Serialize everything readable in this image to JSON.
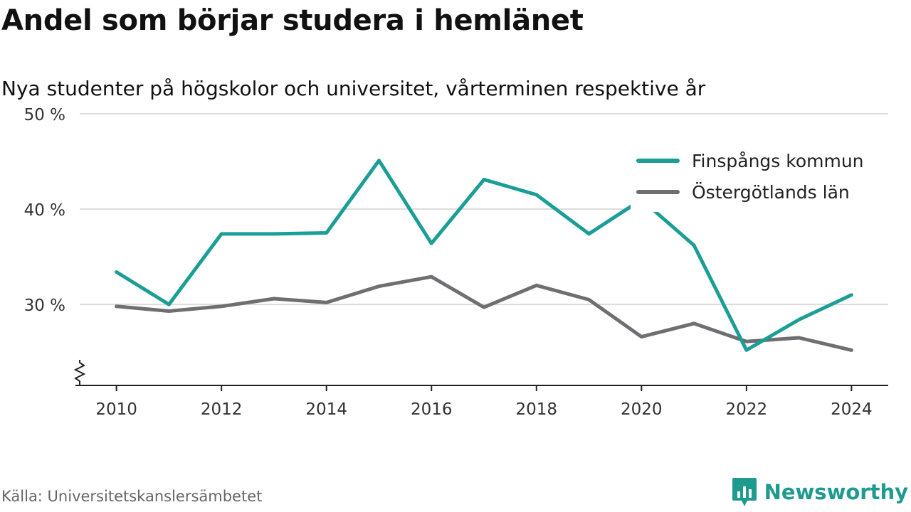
{
  "header": {
    "title": "Andel som börjar studera i hemlänet",
    "subtitle": "Nya studenter på högskolor och universitet, vårterminen respektive år"
  },
  "footer": {
    "source": "Källa: Universitetskanslersämbetet",
    "brand": "Newsworthy"
  },
  "colors": {
    "finspang": "#1a9e95",
    "ostergotland": "#6e6e73",
    "brand": "#1e9a8f"
  },
  "chart_data": {
    "type": "line",
    "x": [
      2010,
      2011,
      2012,
      2013,
      2014,
      2015,
      2016,
      2017,
      2018,
      2019,
      2020,
      2021,
      2022,
      2023,
      2024
    ],
    "series": [
      {
        "name": "Finspångs kommun",
        "color": "#1a9e95",
        "values": [
          33.4,
          30.0,
          37.4,
          37.4,
          37.5,
          45.1,
          36.4,
          43.1,
          41.5,
          37.4,
          41.0,
          36.2,
          25.2,
          28.4,
          31.0
        ]
      },
      {
        "name": "Östergötlands län",
        "color": "#6e6e73",
        "values": [
          29.8,
          29.3,
          29.8,
          30.6,
          30.2,
          31.9,
          32.9,
          29.7,
          32.0,
          30.5,
          26.6,
          28.0,
          26.1,
          26.5,
          25.2
        ]
      }
    ],
    "yticks": [
      {
        "value": 30,
        "label": "30 %"
      },
      {
        "value": 40,
        "label": "40 %"
      },
      {
        "value": 50,
        "label": "50 %"
      }
    ],
    "xticks": [
      {
        "value": 2010,
        "label": "2010"
      },
      {
        "value": 2012,
        "label": "2012"
      },
      {
        "value": 2014,
        "label": "2014"
      },
      {
        "value": 2016,
        "label": "2016"
      },
      {
        "value": 2018,
        "label": "2018"
      },
      {
        "value": 2020,
        "label": "2020"
      },
      {
        "value": 2022,
        "label": "2022"
      },
      {
        "value": 2024,
        "label": "2024"
      }
    ],
    "ylim": [
      21.5,
      50
    ],
    "xlim": [
      2009.3,
      2024.7
    ],
    "axis_break": true,
    "grid": true,
    "legend": "top-right",
    "xlabel": "",
    "ylabel": ""
  }
}
